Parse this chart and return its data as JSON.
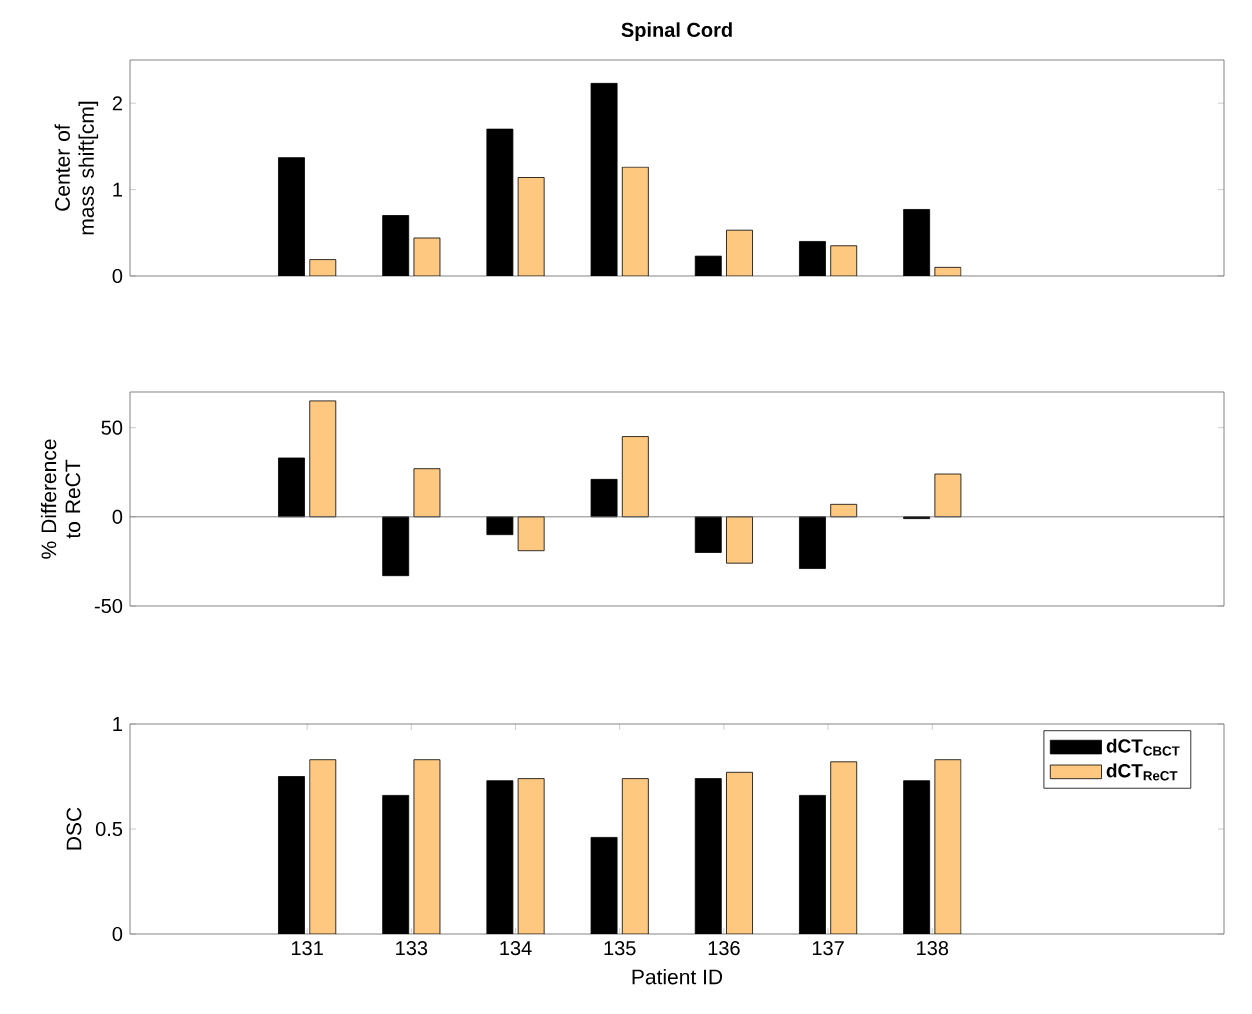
{
  "chart_data": [
    {
      "type": "bar",
      "title": "Spinal Cord",
      "ylabel": "Center of mass shift[cm]",
      "categories": [
        "131",
        "133",
        "134",
        "135",
        "136",
        "137",
        "138"
      ],
      "ylim": [
        0,
        2.5
      ],
      "yticks": [
        0,
        1,
        2
      ],
      "tick_labels": "y",
      "series": [
        {
          "color": "#000000",
          "values": [
            1.37,
            0.7,
            1.7,
            2.23,
            0.23,
            0.4,
            0.77
          ]
        },
        {
          "color": "#ffc880",
          "values": [
            0.19,
            0.44,
            1.14,
            1.26,
            0.53,
            0.35,
            0.1
          ]
        }
      ]
    },
    {
      "type": "bar",
      "ylabel": "% Difference to ReCT",
      "categories": [
        "131",
        "133",
        "134",
        "135",
        "136",
        "137",
        "138"
      ],
      "ylim": [
        -50,
        70
      ],
      "yticks": [
        -50,
        0,
        50
      ],
      "tick_labels": "y",
      "series": [
        {
          "color": "#000000",
          "values": [
            33,
            -33,
            -10,
            21,
            -20,
            -29,
            -1
          ]
        },
        {
          "color": "#ffc880",
          "values": [
            65,
            27,
            -19,
            45,
            -26,
            7,
            24
          ]
        }
      ]
    },
    {
      "type": "bar",
      "ylabel": "DSC",
      "xlabel": "Patient ID",
      "categories": [
        "131",
        "133",
        "134",
        "135",
        "136",
        "137",
        "138"
      ],
      "ylim": [
        0,
        1
      ],
      "yticks": [
        0,
        0.5,
        1
      ],
      "legend": "top right",
      "series": [
        {
          "name": "dCT$_{CBCT}$",
          "color": "#000000",
          "values": [
            0.75,
            0.66,
            0.73,
            0.46,
            0.74,
            0.66,
            0.73
          ]
        },
        {
          "name": "dCT$_{ReCT}$",
          "color": "#ffc880",
          "values": [
            0.83,
            0.83,
            0.74,
            0.74,
            0.77,
            0.82,
            0.83
          ]
        }
      ]
    }
  ]
}
